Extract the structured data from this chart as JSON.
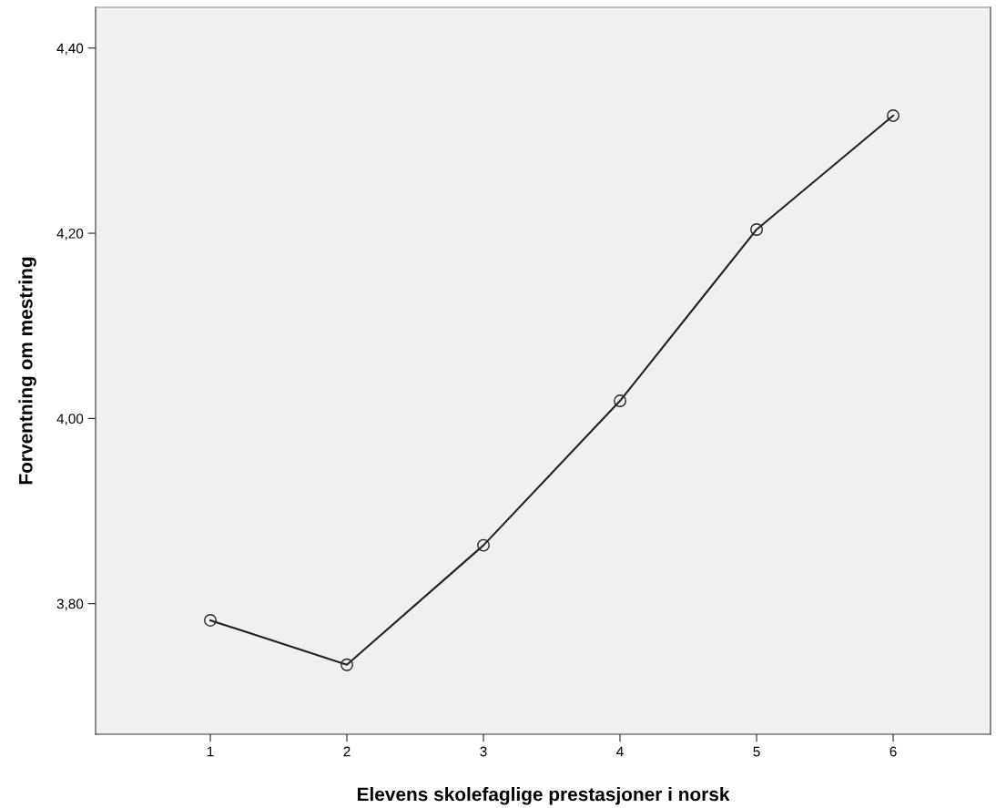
{
  "chart_data": {
    "type": "line",
    "xlabel": "Elevens skolefaglige prestasjoner i norsk",
    "ylabel": "Forventning om mestring",
    "categories": [
      "1",
      "2",
      "3",
      "4",
      "5",
      "6"
    ],
    "series": [
      {
        "color": "#222222",
        "values": [
          3.782,
          3.734,
          3.863,
          4.019,
          4.204,
          4.327
        ]
      }
    ],
    "ylim": [
      3.659,
      4.444
    ],
    "yticks": [
      {
        "value": 3.8,
        "label": "3,80"
      },
      {
        "value": 4.0,
        "label": "4,00"
      },
      {
        "value": 4.2,
        "label": "4,20"
      },
      {
        "value": 4.4,
        "label": "4,40"
      }
    ],
    "marker": "circle",
    "line_style": "solid",
    "grid": false
  }
}
